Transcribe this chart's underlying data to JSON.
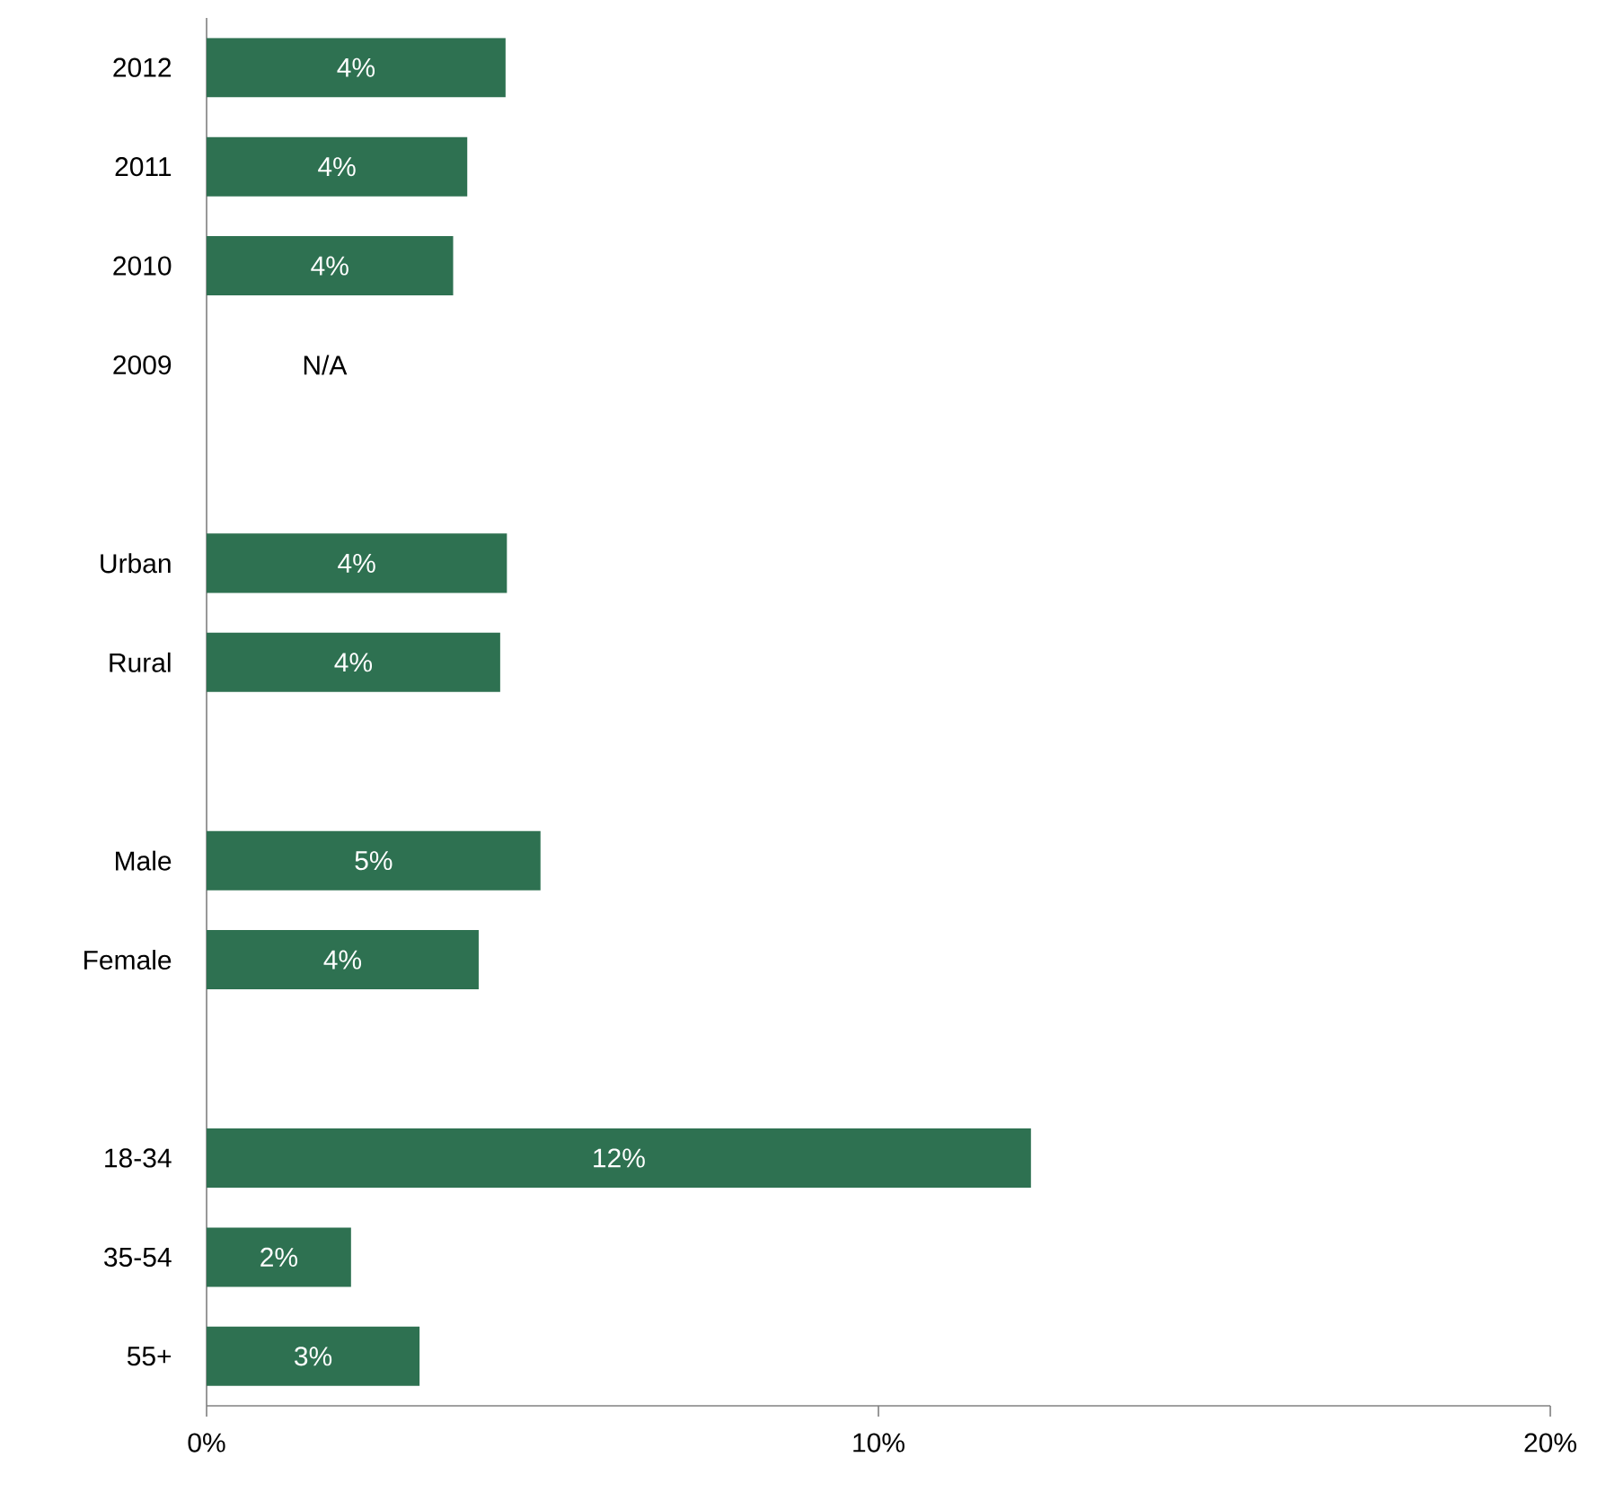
{
  "chart_data": {
    "type": "bar",
    "orientation": "horizontal",
    "categories": [
      "2012",
      "2011",
      "2010",
      "2009",
      null,
      "Urban",
      "Rural",
      null,
      "Male",
      "Female",
      null,
      "18-34",
      "35-54",
      "55+"
    ],
    "values": [
      4.45,
      3.88,
      3.67,
      null,
      null,
      4.47,
      4.37,
      null,
      4.97,
      4.05,
      null,
      12.27,
      2.15,
      3.17
    ],
    "value_labels": [
      "4%",
      "4%",
      "4%",
      "N/A",
      null,
      "4%",
      "4%",
      null,
      "5%",
      "4%",
      null,
      "12%",
      "2%",
      "3%"
    ],
    "color": "#2e7151",
    "xlim": [
      0,
      20
    ],
    "xticks": [
      {
        "value": 0,
        "label": "0%"
      },
      {
        "value": 10,
        "label": "10%"
      },
      {
        "value": 20,
        "label": "20%"
      }
    ],
    "grid": false
  }
}
